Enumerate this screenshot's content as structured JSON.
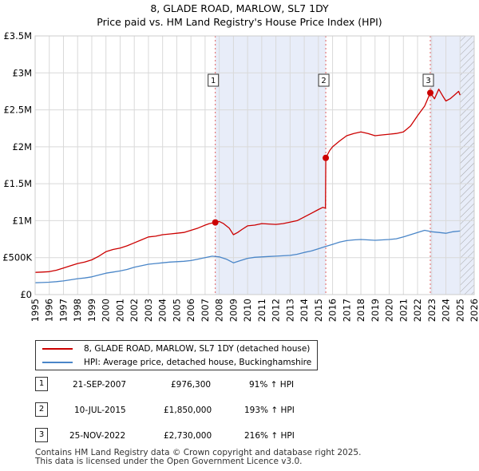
{
  "title_line1": "8, GLADE ROAD, MARLOW, SL7 1DY",
  "title_line2": "Price paid vs. HM Land Registry's House Price Index (HPI)",
  "chart_data": {
    "type": "line",
    "xlim": [
      1995,
      2026
    ],
    "ylim": [
      0,
      3500000
    ],
    "y_ticks": [
      0,
      500000,
      1000000,
      1500000,
      2000000,
      2500000,
      3000000,
      3500000
    ],
    "y_tick_labels": [
      "£0",
      "£500K",
      "£1M",
      "£1.5M",
      "£2M",
      "£2.5M",
      "£3M",
      "£3.5M"
    ],
    "x_ticks": [
      1995,
      1996,
      1997,
      1998,
      1999,
      2000,
      2001,
      2002,
      2003,
      2004,
      2005,
      2006,
      2007,
      2008,
      2009,
      2010,
      2011,
      2012,
      2013,
      2014,
      2015,
      2016,
      2017,
      2018,
      2019,
      2020,
      2021,
      2022,
      2023,
      2024,
      2025,
      2026
    ],
    "grid": true,
    "shaded_spans": [
      [
        2007.72,
        2015.52
      ],
      [
        2022.9,
        2026
      ]
    ],
    "forecast_hatch_start": 2025.0,
    "series": [
      {
        "name": "8, GLADE ROAD, MARLOW, SL7 1DY (detached house)",
        "color": "#cc0000",
        "x": [
          1995,
          1995.5,
          1996,
          1996.5,
          1997,
          1997.5,
          1998,
          1998.5,
          1999,
          1999.5,
          2000,
          2000.5,
          2001,
          2001.5,
          2002,
          2002.5,
          2003,
          2003.5,
          2004,
          2004.5,
          2005,
          2005.5,
          2006,
          2006.5,
          2007,
          2007.3,
          2007.72,
          2008,
          2008.3,
          2008.7,
          2009,
          2009.3,
          2009.6,
          2010,
          2010.5,
          2011,
          2011.5,
          2012,
          2012.5,
          2013,
          2013.5,
          2014,
          2014.5,
          2015,
          2015.3,
          2015.5,
          2015.52,
          2015.8,
          2016,
          2016.5,
          2017,
          2017.5,
          2018,
          2018.5,
          2019,
          2019.5,
          2020,
          2020.5,
          2021,
          2021.5,
          2022,
          2022.5,
          2022.9,
          2023.2,
          2023.5,
          2023.8,
          2024,
          2024.3,
          2024.6,
          2024.9,
          2025.0
        ],
        "y": [
          300000,
          305000,
          310000,
          330000,
          360000,
          390000,
          420000,
          440000,
          470000,
          520000,
          580000,
          610000,
          630000,
          660000,
          700000,
          740000,
          780000,
          790000,
          810000,
          820000,
          830000,
          840000,
          870000,
          900000,
          940000,
          960000,
          976300,
          990000,
          960000,
          900000,
          810000,
          840000,
          880000,
          930000,
          940000,
          960000,
          955000,
          950000,
          960000,
          980000,
          1000000,
          1050000,
          1100000,
          1150000,
          1180000,
          1170000,
          1850000,
          1950000,
          2000000,
          2080000,
          2150000,
          2180000,
          2200000,
          2180000,
          2150000,
          2160000,
          2170000,
          2180000,
          2200000,
          2280000,
          2420000,
          2550000,
          2730000,
          2650000,
          2780000,
          2680000,
          2620000,
          2650000,
          2700000,
          2750000,
          2700000
        ]
      },
      {
        "name": "HPI: Average price, detached house, Buckinghamshire",
        "color": "#4a86c8",
        "x": [
          1995,
          1995.5,
          1996,
          1996.5,
          1997,
          1997.5,
          1998,
          1998.5,
          1999,
          1999.5,
          2000,
          2000.5,
          2001,
          2001.5,
          2002,
          2002.5,
          2003,
          2003.5,
          2004,
          2004.5,
          2005,
          2005.5,
          2006,
          2006.5,
          2007,
          2007.5,
          2008,
          2008.5,
          2009,
          2009.5,
          2010,
          2010.5,
          2011,
          2011.5,
          2012,
          2012.5,
          2013,
          2013.5,
          2014,
          2014.5,
          2015,
          2015.5,
          2016,
          2016.5,
          2017,
          2017.5,
          2018,
          2018.5,
          2019,
          2019.5,
          2020,
          2020.5,
          2021,
          2021.5,
          2022,
          2022.5,
          2023,
          2023.5,
          2024,
          2024.5,
          2025.0
        ],
        "y": [
          160000,
          163000,
          167000,
          175000,
          185000,
          200000,
          215000,
          225000,
          240000,
          265000,
          290000,
          305000,
          320000,
          340000,
          370000,
          390000,
          410000,
          420000,
          430000,
          440000,
          445000,
          450000,
          460000,
          480000,
          500000,
          520000,
          510000,
          480000,
          430000,
          460000,
          490000,
          505000,
          510000,
          515000,
          520000,
          525000,
          530000,
          545000,
          570000,
          590000,
          620000,
          650000,
          680000,
          710000,
          730000,
          740000,
          745000,
          740000,
          735000,
          740000,
          745000,
          755000,
          780000,
          810000,
          840000,
          870000,
          850000,
          840000,
          830000,
          850000,
          860000
        ]
      }
    ],
    "sale_markers": [
      {
        "label": "1",
        "x": 2007.72,
        "y": 976300
      },
      {
        "label": "2",
        "x": 2015.52,
        "y": 1850000
      },
      {
        "label": "3",
        "x": 2022.9,
        "y": 2730000
      }
    ]
  },
  "legend": {
    "property_label": "8, GLADE ROAD, MARLOW, SL7 1DY (detached house)",
    "hpi_label": "HPI: Average price, detached house, Buckinghamshire"
  },
  "transactions": [
    {
      "num": "1",
      "date": "21-SEP-2007",
      "price": "£976,300",
      "hpi": "91% ↑ HPI"
    },
    {
      "num": "2",
      "date": "10-JUL-2015",
      "price": "£1,850,000",
      "hpi": "193% ↑ HPI"
    },
    {
      "num": "3",
      "date": "25-NOV-2022",
      "price": "£2,730,000",
      "hpi": "216% ↑ HPI"
    }
  ],
  "footer_line1": "Contains HM Land Registry data © Crown copyright and database right 2025.",
  "footer_line2": "This data is licensed under the Open Government Licence v3.0."
}
